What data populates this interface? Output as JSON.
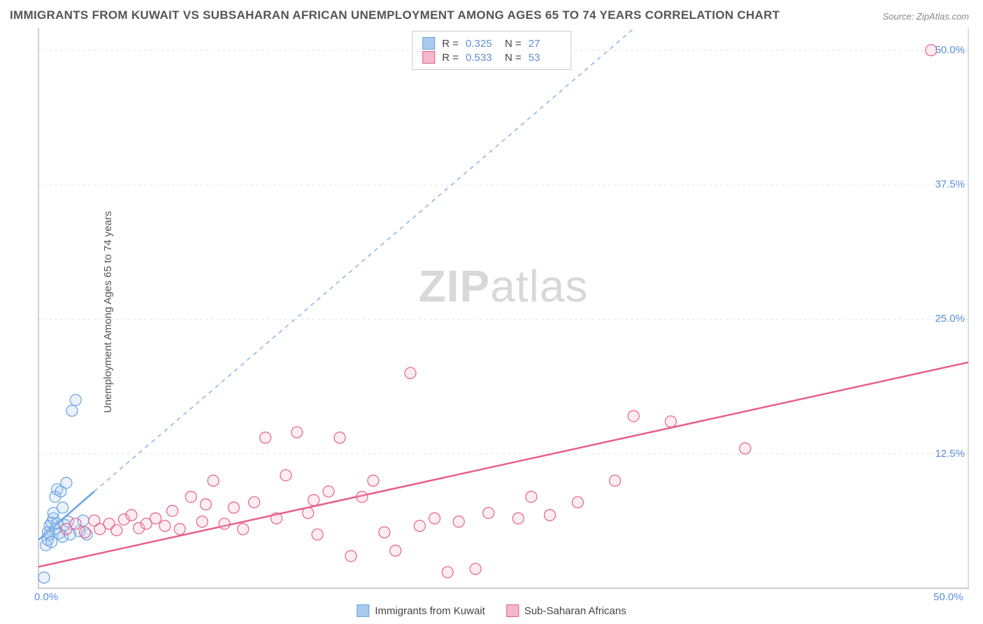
{
  "title": "IMMIGRANTS FROM KUWAIT VS SUBSAHARAN AFRICAN UNEMPLOYMENT AMONG AGES 65 TO 74 YEARS CORRELATION CHART",
  "source": "Source: ZipAtlas.com",
  "y_axis_label": "Unemployment Among Ages 65 to 74 years",
  "watermark_bold": "ZIP",
  "watermark_light": "atlas",
  "chart": {
    "type": "scatter",
    "xlim": [
      0,
      50
    ],
    "ylim": [
      0,
      52
    ],
    "x_ticks": [
      {
        "v": 0,
        "label": "0.0%"
      },
      {
        "v": 50,
        "label": "50.0%"
      }
    ],
    "y_ticks": [
      {
        "v": 12.5,
        "label": "12.5%"
      },
      {
        "v": 25,
        "label": "25.0%"
      },
      {
        "v": 37.5,
        "label": "37.5%"
      },
      {
        "v": 50,
        "label": "50.0%"
      }
    ],
    "grid_color": "#e6e6e6",
    "grid_dash": "4,4",
    "axis_color": "#bfbfbf",
    "tick_label_color": "#5a8fd8",
    "background": "#ffffff",
    "marker_radius": 8,
    "marker_stroke_width": 1.2,
    "marker_fill_opacity": 0.25
  },
  "series": [
    {
      "id": "kuwait",
      "name": "Immigrants from Kuwait",
      "color": "#6aa3e0",
      "fill": "#a9c9ef",
      "r_value": "0.325",
      "n_value": "27",
      "trend": {
        "x1": 0,
        "y1": 4.5,
        "x2": 3,
        "y2": 9,
        "dash_x2": 32,
        "dash_y2": 52
      },
      "points": [
        [
          0.3,
          1.0
        ],
        [
          0.4,
          4.0
        ],
        [
          0.5,
          4.5
        ],
        [
          0.5,
          5.2
        ],
        [
          0.6,
          5.0
        ],
        [
          0.6,
          5.8
        ],
        [
          0.7,
          6.1
        ],
        [
          0.7,
          4.3
        ],
        [
          0.8,
          6.5
        ],
        [
          0.8,
          7.0
        ],
        [
          0.9,
          5.5
        ],
        [
          0.9,
          8.5
        ],
        [
          1.0,
          6.0
        ],
        [
          1.0,
          9.2
        ],
        [
          1.1,
          5.1
        ],
        [
          1.2,
          9.0
        ],
        [
          1.3,
          7.5
        ],
        [
          1.3,
          4.8
        ],
        [
          1.4,
          5.9
        ],
        [
          1.5,
          9.8
        ],
        [
          1.6,
          6.2
        ],
        [
          1.7,
          5.0
        ],
        [
          1.8,
          16.5
        ],
        [
          2.0,
          17.5
        ],
        [
          2.2,
          5.3
        ],
        [
          2.4,
          6.3
        ],
        [
          2.6,
          5.0
        ]
      ]
    },
    {
      "id": "subsaharan",
      "name": "Sub-Saharan Africans",
      "color": "#e85f8a",
      "fill": "#f5b8cb",
      "r_value": "0.533",
      "n_value": "53",
      "trend": {
        "x1": 0,
        "y1": 2.0,
        "x2": 50,
        "y2": 21.0
      },
      "points": [
        [
          1.5,
          5.5
        ],
        [
          2.0,
          6.0
        ],
        [
          2.5,
          5.2
        ],
        [
          3.0,
          6.3
        ],
        [
          3.3,
          5.5
        ],
        [
          3.8,
          6.0
        ],
        [
          4.2,
          5.4
        ],
        [
          4.6,
          6.4
        ],
        [
          5.0,
          6.8
        ],
        [
          5.4,
          5.6
        ],
        [
          5.8,
          6.0
        ],
        [
          6.3,
          6.5
        ],
        [
          6.8,
          5.8
        ],
        [
          7.2,
          7.2
        ],
        [
          7.6,
          5.5
        ],
        [
          8.2,
          8.5
        ],
        [
          8.8,
          6.2
        ],
        [
          9.4,
          10.0
        ],
        [
          10.0,
          6.0
        ],
        [
          10.5,
          7.5
        ],
        [
          11.0,
          5.5
        ],
        [
          11.6,
          8.0
        ],
        [
          12.2,
          14.0
        ],
        [
          12.8,
          6.5
        ],
        [
          13.3,
          10.5
        ],
        [
          13.9,
          14.5
        ],
        [
          14.5,
          7.0
        ],
        [
          15.0,
          5.0
        ],
        [
          15.6,
          9.0
        ],
        [
          16.2,
          14.0
        ],
        [
          16.8,
          3.0
        ],
        [
          17.4,
          8.5
        ],
        [
          18.0,
          10.0
        ],
        [
          18.6,
          5.2
        ],
        [
          19.2,
          3.5
        ],
        [
          20.0,
          20.0
        ],
        [
          20.5,
          5.8
        ],
        [
          21.3,
          6.5
        ],
        [
          22.0,
          1.5
        ],
        [
          22.6,
          6.2
        ],
        [
          23.5,
          1.8
        ],
        [
          24.2,
          7.0
        ],
        [
          25.8,
          6.5
        ],
        [
          26.5,
          8.5
        ],
        [
          27.5,
          6.8
        ],
        [
          29.0,
          8.0
        ],
        [
          31.0,
          10.0
        ],
        [
          32.0,
          16.0
        ],
        [
          34.0,
          15.5
        ],
        [
          38.0,
          13.0
        ],
        [
          48.0,
          50.0
        ],
        [
          14.8,
          8.2
        ],
        [
          9.0,
          7.8
        ]
      ]
    }
  ],
  "legend_top": {
    "r_label": "R =",
    "n_label": "N ="
  },
  "legend_bottom": {
    "items": [
      "Immigrants from Kuwait",
      "Sub-Saharan Africans"
    ]
  }
}
